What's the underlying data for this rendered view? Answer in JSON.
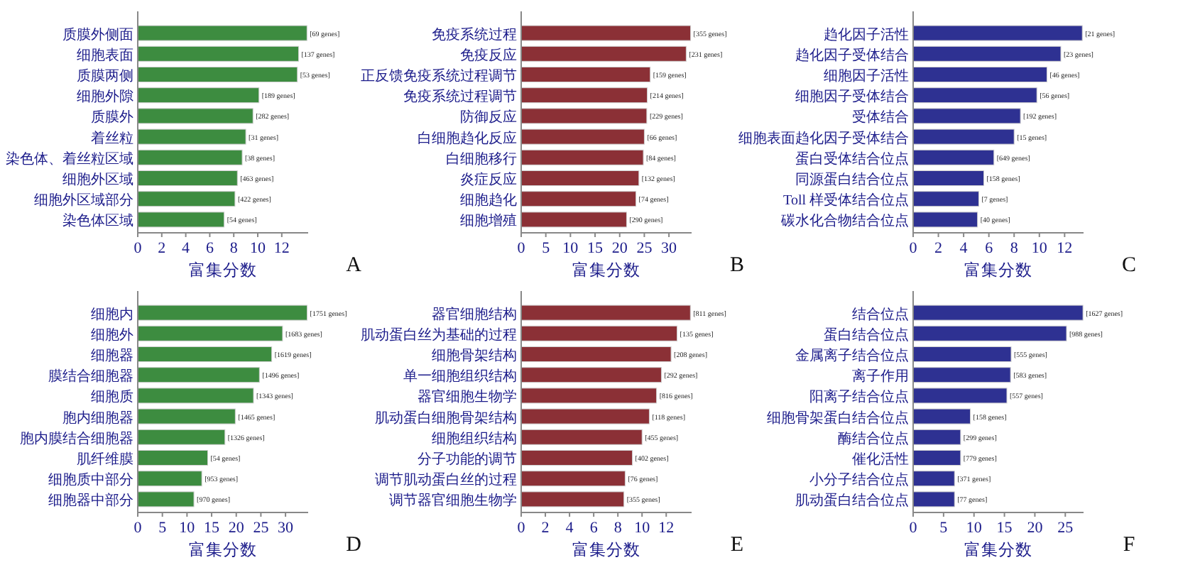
{
  "chart_data": [
    {
      "type": "bar",
      "orientation": "horizontal",
      "color": "#3d8c40",
      "xlabel": "富集分数",
      "xlim": [
        0,
        14.2
      ],
      "xticks": [
        0,
        2,
        4,
        6,
        8,
        10,
        12
      ],
      "categories": [
        "质膜外侧面",
        "细胞表面",
        "质膜两侧",
        "细胞外隙",
        "质膜外",
        "着丝粒",
        "染色体、着丝粒区域",
        "细胞外区域",
        "细胞外区域部分",
        "染色体区域"
      ],
      "values": [
        14.1,
        13.4,
        13.3,
        10.1,
        9.6,
        9.0,
        8.7,
        8.3,
        8.1,
        7.2
      ],
      "annotations": [
        "A",
        {
          "text": "[69 genes]",
          "x": 14.1,
          "y": "质膜外侧面"
        },
        {
          "text": "[137 genes]",
          "x": 13.4,
          "y": "细胞表面"
        },
        {
          "text": "[53 genes]",
          "x": 13.3,
          "y": "质膜两侧"
        },
        {
          "text": "[189 genes]",
          "x": 10.1,
          "y": "细胞外隙"
        },
        {
          "text": "[282 genes]",
          "x": 9.6,
          "y": "质膜外"
        },
        {
          "text": "[31 genes]",
          "x": 9.0,
          "y": "着丝粒"
        },
        {
          "text": "[38 genes]",
          "x": 8.7,
          "y": "染色体、着丝粒区域"
        },
        {
          "text": "[463 genes]",
          "x": 8.3,
          "y": "细胞外区域"
        },
        {
          "text": "[422 genes]",
          "x": 8.1,
          "y": "细胞外区域部分"
        },
        {
          "text": "[54 genes]",
          "x": 7.2,
          "y": "染色体区域"
        }
      ]
    },
    {
      "type": "bar",
      "orientation": "horizontal",
      "color": "#8b3036",
      "xlabel": "富集分数",
      "xlim": [
        0,
        34.6
      ],
      "xticks": [
        0,
        5,
        10,
        15,
        20,
        25,
        30
      ],
      "categories": [
        "免疫系统过程",
        "免疫反应",
        "正反馈免疫系统过程调节",
        "免疫系统过程调节",
        "防御反应",
        "白细胞趋化反应",
        "白细胞移行",
        "炎症反应",
        "细胞趋化",
        "细胞增殖"
      ],
      "values": [
        34.4,
        33.5,
        26.2,
        25.6,
        25.5,
        25.0,
        24.8,
        23.9,
        23.3,
        21.4
      ],
      "annotations": [
        "B",
        {
          "text": "[355 genes]",
          "x": 34.4,
          "y": "免疫系统过程"
        },
        {
          "text": "[231 genes]",
          "x": 33.5,
          "y": "免疫反应"
        },
        {
          "text": "[159 genes]",
          "x": 26.2,
          "y": "正反馈免疫系统过程调节"
        },
        {
          "text": "[214 genes]",
          "x": 25.6,
          "y": "免疫系统过程调节"
        },
        {
          "text": "[229 genes]",
          "x": 25.5,
          "y": "防御反应"
        },
        {
          "text": "[66 genes]",
          "x": 25.0,
          "y": "白细胞趋化反应"
        },
        {
          "text": "[84 genes]",
          "x": 24.8,
          "y": "白细胞移行"
        },
        {
          "text": "[132 genes]",
          "x": 23.9,
          "y": "炎症反应"
        },
        {
          "text": "[74 genes]",
          "x": 23.3,
          "y": "细胞趋化"
        },
        {
          "text": "[290 genes]",
          "x": 21.4,
          "y": "细胞增殖"
        }
      ]
    },
    {
      "type": "bar",
      "orientation": "horizontal",
      "color": "#2e3192",
      "xlabel": "富集分数",
      "xlim": [
        0,
        13.5
      ],
      "xticks": [
        0,
        2,
        4,
        6,
        8,
        10,
        12
      ],
      "categories": [
        "趋化因子活性",
        "趋化因子受体结合",
        "细胞因子活性",
        "细胞因子受体结合",
        "受体结合",
        "细胞表面趋化因子受体结合",
        "蛋白受体结合位点",
        "同源蛋白结合位点",
        "Toll 样受体结合位点",
        "碳水化合物结合位点"
      ],
      "values": [
        13.4,
        11.7,
        10.6,
        9.8,
        8.5,
        8.0,
        6.4,
        5.6,
        5.2,
        5.1
      ],
      "annotations": [
        "C",
        {
          "text": "[21 genes]",
          "x": 13.4,
          "y": "趋化因子活性"
        },
        {
          "text": "[23 genes]",
          "x": 11.7,
          "y": "趋化因子受体结合"
        },
        {
          "text": "[46 genes]",
          "x": 10.6,
          "y": "细胞因子活性"
        },
        {
          "text": "[56 genes]",
          "x": 9.8,
          "y": "细胞因子受体结合"
        },
        {
          "text": "[192 genes]",
          "x": 8.5,
          "y": "受体结合"
        },
        {
          "text": "[15 genes]",
          "x": 8.0,
          "y": "细胞表面趋化因子受体结合"
        },
        {
          "text": "[649 genes]",
          "x": 6.4,
          "y": "蛋白受体结合位点"
        },
        {
          "text": "[158 genes]",
          "x": 5.6,
          "y": "同源蛋白结合位点"
        },
        {
          "text": "[7 genes]",
          "x": 5.2,
          "y": "Toll 样受体结合位点"
        },
        {
          "text": "[40 genes]",
          "x": 5.1,
          "y": "碳水化合物结合位点"
        }
      ]
    },
    {
      "type": "bar",
      "orientation": "horizontal",
      "color": "#3d8c40",
      "xlabel": "富集分数",
      "xlim": [
        0,
        34.6
      ],
      "xticks": [
        0,
        5,
        10,
        15,
        20,
        25,
        30
      ],
      "categories": [
        "细胞内",
        "细胞外",
        "细胞器",
        "膜结合细胞器",
        "细胞质",
        "胞内细胞器",
        "胞内膜结合细胞器",
        "肌纤维膜",
        "细胞质中部分",
        "细胞器中部分"
      ],
      "values": [
        34.4,
        29.4,
        27.2,
        24.7,
        23.5,
        19.8,
        17.7,
        14.2,
        13.0,
        11.4
      ],
      "annotations": [
        "D",
        {
          "text": "[1751 genes]",
          "x": 34.4,
          "y": "细胞内"
        },
        {
          "text": "[1683 genes]",
          "x": 29.4,
          "y": "细胞外"
        },
        {
          "text": "[1619 genes]",
          "x": 27.2,
          "y": "细胞器"
        },
        {
          "text": "[1496 genes]",
          "x": 24.7,
          "y": "膜结合细胞器"
        },
        {
          "text": "[1343 genes]",
          "x": 23.5,
          "y": "细胞质"
        },
        {
          "text": "[1465 genes]",
          "x": 19.8,
          "y": "胞内细胞器"
        },
        {
          "text": "[1326 genes]",
          "x": 17.7,
          "y": "胞内膜结合细胞器"
        },
        {
          "text": "[54 genes]",
          "x": 14.2,
          "y": "肌纤维膜"
        },
        {
          "text": "[953 genes]",
          "x": 13.0,
          "y": "细胞质中部分"
        },
        {
          "text": "[970 genes]",
          "x": 11.4,
          "y": "细胞器中部分"
        }
      ]
    },
    {
      "type": "bar",
      "orientation": "horizontal",
      "color": "#8b3036",
      "xlabel": "富集分数",
      "xlim": [
        0,
        14.1
      ],
      "xticks": [
        0,
        2,
        4,
        6,
        8,
        10,
        12
      ],
      "categories": [
        "器官细胞结构",
        "肌动蛋白丝为基础的过程",
        "细胞骨架结构",
        "单一细胞组织结构",
        "器官细胞生物学",
        "肌动蛋白细胞骨架结构",
        "细胞组织结构",
        "分子功能的调节",
        "调节肌动蛋白丝的过程",
        "调节器官细胞生物学"
      ],
      "values": [
        14.0,
        12.9,
        12.4,
        11.6,
        11.2,
        10.6,
        10.0,
        9.2,
        8.6,
        8.5
      ],
      "annotations": [
        "E",
        {
          "text": "[811 genes]",
          "x": 14.0,
          "y": "器官细胞结构"
        },
        {
          "text": "[135 genes]",
          "x": 12.9,
          "y": "肌动蛋白丝为基础的过程"
        },
        {
          "text": "[208 genes]",
          "x": 12.4,
          "y": "细胞骨架结构"
        },
        {
          "text": "[292 genes]",
          "x": 11.6,
          "y": "单一细胞组织结构"
        },
        {
          "text": "[816 genes]",
          "x": 11.2,
          "y": "器官细胞生物学"
        },
        {
          "text": "[118 genes]",
          "x": 10.6,
          "y": "肌动蛋白细胞骨架结构"
        },
        {
          "text": "[455 genes]",
          "x": 10.0,
          "y": "细胞组织结构"
        },
        {
          "text": "[402 genes]",
          "x": 9.2,
          "y": "分子功能的调节"
        },
        {
          "text": "[76 genes]",
          "x": 8.6,
          "y": "调节肌动蛋白丝的过程"
        },
        {
          "text": "[355 genes]",
          "x": 8.5,
          "y": "调节器官细胞生物学"
        }
      ]
    },
    {
      "type": "bar",
      "orientation": "horizontal",
      "color": "#2e3192",
      "xlabel": "富集分数",
      "xlim": [
        0,
        28
      ],
      "xticks": [
        0,
        5,
        10,
        15,
        20,
        25
      ],
      "categories": [
        "结合位点",
        "蛋白结合位点",
        "金属离子结合位点",
        "离子作用",
        "阳离子结合位点",
        "细胞骨架蛋白结合位点",
        "酶结合位点",
        "催化活性",
        "小分子结合位点",
        "肌动蛋白结合位点"
      ],
      "values": [
        27.9,
        25.2,
        16.1,
        16.0,
        15.4,
        9.4,
        7.8,
        7.8,
        6.8,
        6.8
      ],
      "annotations": [
        "F",
        {
          "text": "[1627 genes]",
          "x": 27.9,
          "y": "结合位点"
        },
        {
          "text": "[988 genes]",
          "x": 25.2,
          "y": "蛋白结合位点"
        },
        {
          "text": "[555 genes]",
          "x": 16.1,
          "y": "金属离子结合位点"
        },
        {
          "text": "[583 genes]",
          "x": 16.0,
          "y": "离子作用"
        },
        {
          "text": "[557 genes]",
          "x": 15.4,
          "y": "阳离子结合位点"
        },
        {
          "text": "[158 genes]",
          "x": 9.4,
          "y": "细胞骨架蛋白结合位点"
        },
        {
          "text": "[299 genes]",
          "x": 7.8,
          "y": "酶结合位点"
        },
        {
          "text": "[779 genes]",
          "x": 7.8,
          "y": "催化活性"
        },
        {
          "text": "[371 genes]",
          "x": 6.8,
          "y": "小分子结合位点"
        },
        {
          "text": "[77 genes]",
          "x": 6.8,
          "y": "肌动蛋白结合位点"
        }
      ]
    }
  ]
}
